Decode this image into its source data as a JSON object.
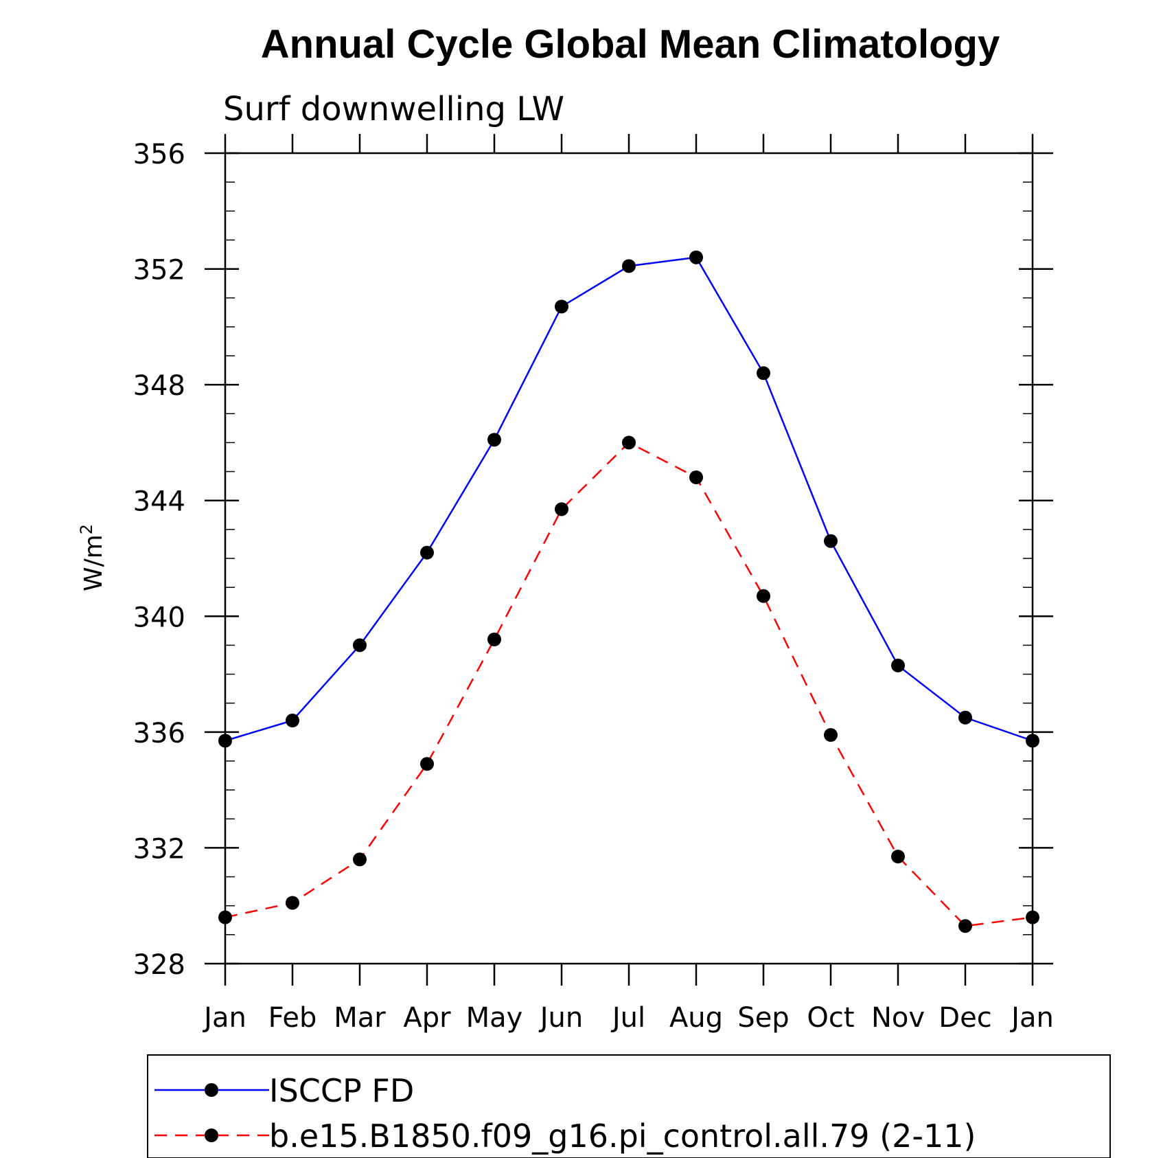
{
  "chart_data": {
    "type": "line",
    "title": "Annual Cycle Global Mean Climatology",
    "subtitle": "Surf downwelling LW",
    "ylabel": "W/m",
    "ylabel_sup": "2",
    "categories": [
      "Jan",
      "Feb",
      "Mar",
      "Apr",
      "May",
      "Jun",
      "Jul",
      "Aug",
      "Sep",
      "Oct",
      "Nov",
      "Dec",
      "Jan"
    ],
    "ylim": [
      328,
      356
    ],
    "yticks": [
      328,
      332,
      336,
      340,
      344,
      348,
      352,
      356
    ],
    "y_minor_step": 1,
    "grid": false,
    "legend_position": "bottom",
    "series": [
      {
        "name": "ISCCP FD",
        "color": "#0000ff",
        "dashed": false,
        "marker": "filled-circle",
        "values": [
          335.7,
          336.4,
          339.0,
          342.2,
          346.1,
          350.7,
          352.1,
          352.4,
          348.4,
          342.6,
          338.3,
          336.5,
          335.7
        ]
      },
      {
        "name": "b.e15.B1850.f09_g16.pi_control.all.79 (2-11)",
        "color": "#ff0000",
        "dashed": true,
        "marker": "filled-circle",
        "values": [
          329.6,
          330.1,
          331.6,
          334.9,
          339.2,
          343.7,
          346.0,
          344.8,
          340.7,
          335.9,
          331.7,
          329.3,
          329.6
        ]
      }
    ]
  }
}
